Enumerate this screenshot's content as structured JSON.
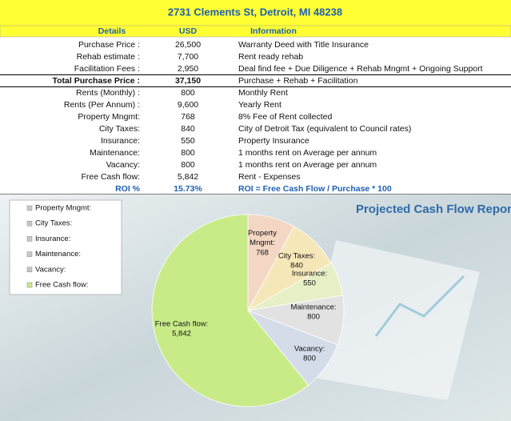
{
  "header": {
    "title": "2731 Clements St, Detroit, MI 48238"
  },
  "table": {
    "columns": [
      "Details",
      "USD",
      "Information"
    ],
    "rows": [
      [
        "Purchase Price :",
        "26,500",
        "Warranty Deed with Title Insurance"
      ],
      [
        "Rehab estimate :",
        "7,700",
        "Rent ready rehab"
      ],
      [
        "Facilitation Fees :",
        "2,950",
        "Deal find fee + Due Diligence + Rehab Mngmt + Ongoing Support"
      ],
      [
        "Total Purchase Price :",
        "37,150",
        "Purchase + Rehab + Facilitation"
      ],
      [
        "Rents (Monthly) :",
        "800",
        "Monthly Rent"
      ],
      [
        "Rents (Per Annum) :",
        "9,600",
        "Yearly Rent"
      ],
      [
        "Property Mngmt:",
        "768",
        "8%  Fee of Rent collected"
      ],
      [
        "City Taxes:",
        "840",
        "City of Detroit Tax (equivalent to Council rates)"
      ],
      [
        "Insurance:",
        "550",
        "Property Insurance"
      ],
      [
        "Maintenance:",
        "800",
        "1 months rent on Average per annum"
      ],
      [
        "Vacancy:",
        "800",
        "1 months rent on Average per annum"
      ],
      [
        "Free Cash flow:",
        "5,842",
        "Rent - Expenses"
      ],
      [
        "ROI %",
        "15.73%",
        "ROI = Free Cash Flow / Purchase * 100"
      ]
    ]
  },
  "chart_data": {
    "type": "pie",
    "title": "Projected Cash Flow Report",
    "categories": [
      "Property Mngmt:",
      "City Taxes:",
      "Insurance:",
      "Maintenance:",
      "Vacancy:",
      "Free Cash flow:"
    ],
    "values": [
      768,
      840,
      550,
      800,
      800,
      5842
    ],
    "value_labels": [
      "768",
      "840",
      "550",
      "800",
      "800",
      "5,842"
    ],
    "colors": [
      "#f3d6c4",
      "#f6e7b8",
      "#e7efc6",
      "#e2e2e2",
      "#d3dce8",
      "#c8eb88"
    ],
    "legend": "top-left"
  }
}
